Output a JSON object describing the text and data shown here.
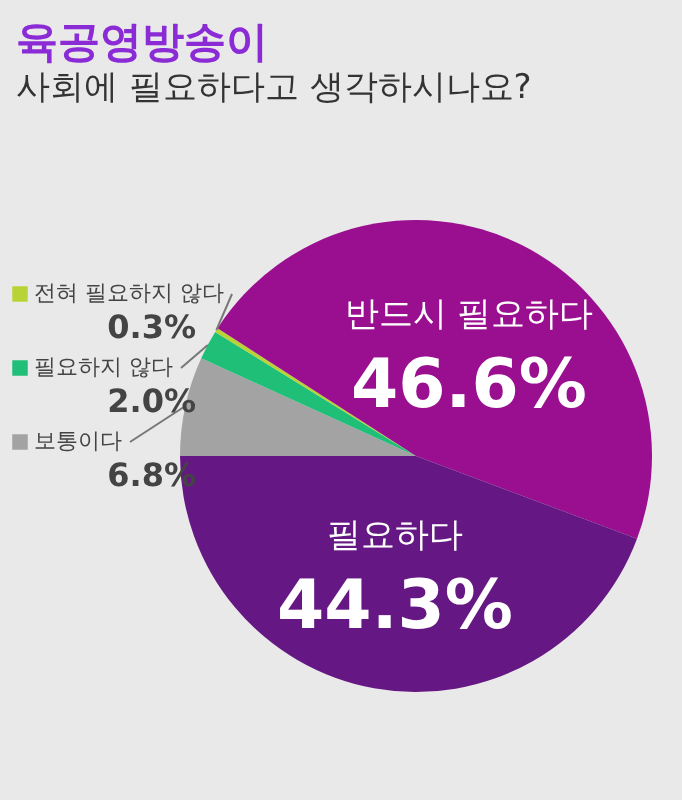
{
  "chart_data": {
    "type": "pie",
    "title": "육공영방송이",
    "subtitle": "사회에 필요하다고 생각하시나요?",
    "categories": [
      "보통이다",
      "필요하지 않다",
      "전혀 필요하지 않다",
      "반드시 필요하다",
      "필요하다"
    ],
    "values": [
      6.8,
      2.0,
      0.3,
      46.6,
      44.3
    ],
    "colors": [
      "#a3a3a3",
      "#1fbf78",
      "#b8d335",
      "#9a0f8f",
      "#651783"
    ],
    "value_labels": [
      "6.8%",
      "2.0%",
      "0.3%",
      "46.6%",
      "44.3%"
    ],
    "legend": "left"
  }
}
